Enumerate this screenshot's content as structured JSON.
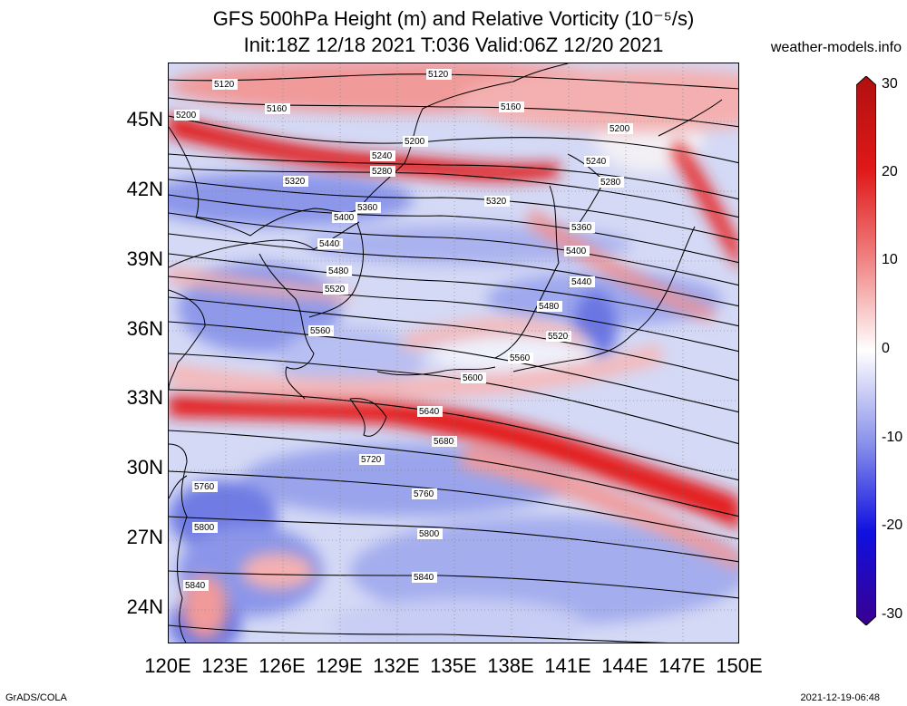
{
  "header": {
    "title_line1": "GFS 500hPa Height (m) and Relative Vorticity (10⁻⁵/s)",
    "title_line2": "Init:18Z 12/18 2021 T:036 Valid:06Z 12/20 2021",
    "site": "weather-models.info"
  },
  "map": {
    "lat_labels": [
      "45N",
      "42N",
      "39N",
      "36N",
      "33N",
      "30N",
      "27N",
      "24N"
    ],
    "lon_labels": [
      "120E",
      "123E",
      "126E",
      "129E",
      "132E",
      "135E",
      "138E",
      "141E",
      "144E",
      "147E",
      "150E"
    ],
    "lat_range": [
      22.5,
      47.5
    ],
    "lon_range": [
      120,
      150
    ],
    "contour_labels": [
      "5120",
      "5160",
      "5200",
      "5240",
      "5280",
      "5320",
      "5360",
      "5400",
      "5440",
      "5480",
      "5520",
      "5560",
      "5600",
      "5640",
      "5680",
      "5720",
      "5760",
      "5800",
      "5840"
    ],
    "colors": {
      "positive_strong": "#c00000",
      "positive": "#ff3030",
      "neutral": "#ffffff",
      "negative": "#3040ff",
      "negative_strong": "#200080"
    }
  },
  "colorbar": {
    "ticks": [
      "30",
      "20",
      "10",
      "0",
      "-10",
      "-20",
      "-30"
    ],
    "range": [
      -30,
      30
    ]
  },
  "footer": {
    "left": "GrADS/COLA",
    "right": "2021-12-19-06:48"
  }
}
